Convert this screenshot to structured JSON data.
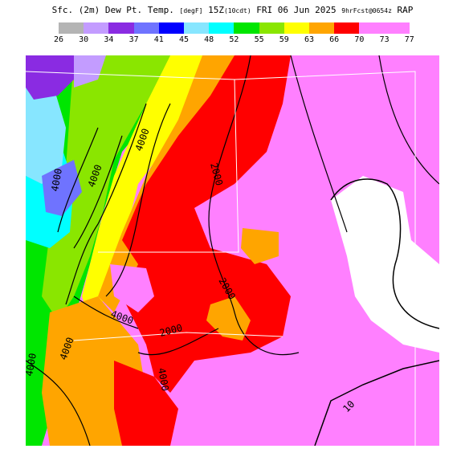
{
  "title": {
    "main": "Sfc. (2m) Dew Pt. Temp.",
    "unit": "[degF]",
    "valid": "15Z",
    "local": "(10cdt)",
    "date": "FRI 06 Jun 2025",
    "fcst": "9hrFcst@0654z",
    "model": "RAP"
  },
  "colorbar": {
    "labels": [
      "26",
      "30",
      "34",
      "37",
      "41",
      "45",
      "48",
      "52",
      "55",
      "59",
      "63",
      "66",
      "70",
      "73",
      "77"
    ],
    "colors": [
      "#b4b4b4",
      "#c39cff",
      "#8a2be2",
      "#6f73ff",
      "#0000ff",
      "#87e6ff",
      "#00ffff",
      "#00e600",
      "#8ae600",
      "#ffff00",
      "#ffa500",
      "#ff0000",
      "#ff80ff",
      "#ff80ff"
    ]
  },
  "map": {
    "contour_labels": [
      "4000",
      "4000",
      "4000",
      "2000",
      "2000",
      "4000",
      "2000",
      "4000",
      "4000",
      "4000",
      "10"
    ]
  }
}
